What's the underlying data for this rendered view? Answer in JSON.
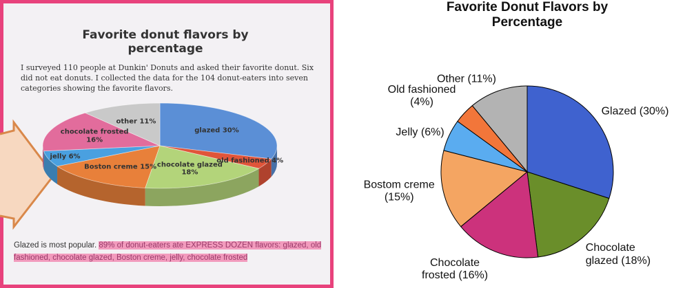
{
  "chart_data": [
    {
      "type": "pie3d",
      "title": "Favorite donut flavors by percentage",
      "description": "I surveyed 110 people at Dunkin' Donuts and asked their favorite donut. Six did not eat donuts. I collected the data for the 104 donut-eaters into seven categories showing the favorite flavors.",
      "note": "Glazed is most popular.",
      "highlight": "89% of donut-eaters ate EXPRESS DOZEN flavors: glazed, old fashioned, chocolate glazed, Boston creme, jelly, chocolate frosted",
      "categories": [
        "glazed 30%",
        "old fashioned 4%",
        "chocolate glazed 18%",
        "Boston creme 15%",
        "jelly 6%",
        "chocolate frosted 16%",
        "other 11%"
      ],
      "values": [
        30,
        4,
        18,
        15,
        6,
        16,
        11
      ],
      "colors": [
        "#5b8fd6",
        "#e0553a",
        "#b3d47a",
        "#e8803a",
        "#4aa0e0",
        "#e26c9c",
        "#c9c9c9"
      ]
    },
    {
      "type": "pie",
      "title": "Favorite Donut Flavors by Percentage",
      "categories": [
        "Glazed (30%)",
        "Chocolate glazed (18%)",
        "Chocolate frosted (16%)",
        "Bostom creme (15%)",
        "Jelly (6%)",
        "Old fashioned (4%)",
        "Other (11%)"
      ],
      "values": [
        30,
        18,
        16,
        15,
        6,
        4,
        11
      ],
      "colors": [
        "#3f62cf",
        "#6a8e2a",
        "#cc327c",
        "#f4a562",
        "#5aacf0",
        "#f2763a",
        "#b3b3b3"
      ]
    }
  ]
}
